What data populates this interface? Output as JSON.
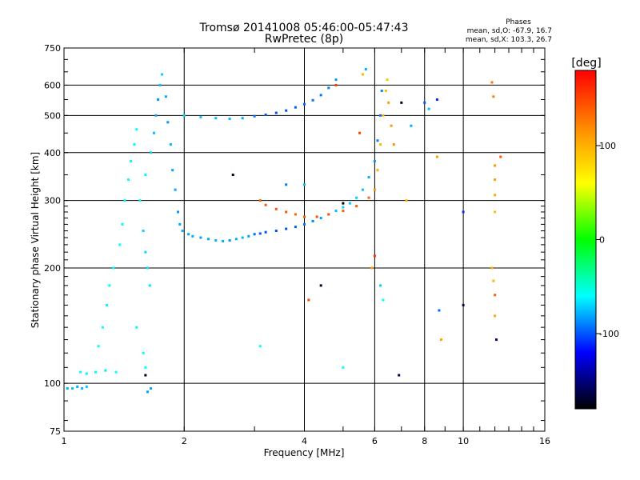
{
  "chart_data": {
    "type": "scatter",
    "title": "Tromsø 20141008 05:46:00-05:47:43",
    "subtitle": "RwPretec (8p)",
    "xlabel": "Frequency [MHz]",
    "ylabel": "Stationary phase Virtual Height [km]",
    "x_scale": "log",
    "y_scale": "log",
    "xlim": [
      1,
      16
    ],
    "ylim": [
      75,
      750
    ],
    "x_ticks": [
      1,
      2,
      4,
      6,
      8,
      10,
      16
    ],
    "y_ticks": [
      75,
      100,
      200,
      300,
      400,
      500,
      600,
      750
    ],
    "x_grid": [
      2,
      4,
      6,
      8,
      10
    ],
    "y_grid": [
      100,
      200,
      300,
      400,
      500,
      600
    ],
    "grid": true,
    "stats": {
      "heading": "Phases",
      "line_o": "mean, sd,O: -67.9, 16.7",
      "line_x": "mean, sd,X: 103.3, 26.7"
    },
    "colorbar": {
      "label": "[deg]",
      "range": [
        -180,
        180
      ],
      "ticks": [
        100,
        0,
        -100
      ],
      "colors": [
        "#ff0000",
        "#ff8800",
        "#ffff00",
        "#00ff00",
        "#00ffff",
        "#0000ff",
        "#000000"
      ]
    },
    "series": [
      {
        "points": [
          [
            1.02,
            97,
            -78
          ],
          [
            1.05,
            97,
            -75
          ],
          [
            1.08,
            98,
            -80
          ],
          [
            1.11,
            97,
            -76
          ],
          [
            1.14,
            98,
            -72
          ],
          [
            1.1,
            107,
            -60
          ],
          [
            1.14,
            106,
            -62
          ],
          [
            1.2,
            107,
            -58
          ],
          [
            1.27,
            108,
            -65
          ],
          [
            1.35,
            107,
            -60
          ],
          [
            1.22,
            125,
            -55
          ],
          [
            1.25,
            140,
            -60
          ],
          [
            1.28,
            160,
            -58
          ],
          [
            1.3,
            180,
            -62
          ],
          [
            1.33,
            200,
            -60
          ],
          [
            1.38,
            230,
            -58
          ],
          [
            1.4,
            260,
            -62
          ],
          [
            1.42,
            300,
            -56
          ],
          [
            1.45,
            340,
            -60
          ],
          [
            1.47,
            380,
            -58
          ],
          [
            1.5,
            420,
            -62
          ],
          [
            1.52,
            460,
            -60
          ],
          [
            1.55,
            300,
            -58
          ],
          [
            1.58,
            250,
            -70
          ],
          [
            1.6,
            220,
            -68
          ],
          [
            1.62,
            200,
            -66
          ],
          [
            1.64,
            180,
            -65
          ],
          [
            1.6,
            350,
            -62
          ],
          [
            1.65,
            400,
            -70
          ],
          [
            1.68,
            450,
            -75
          ],
          [
            1.7,
            500,
            -80
          ],
          [
            1.72,
            550,
            -85
          ],
          [
            1.74,
            600,
            -75
          ],
          [
            1.76,
            640,
            -70
          ],
          [
            1.8,
            560,
            -80
          ],
          [
            1.82,
            480,
            -85
          ],
          [
            1.85,
            420,
            -78
          ],
          [
            1.87,
            360,
            -82
          ],
          [
            1.9,
            320,
            -80
          ],
          [
            1.93,
            280,
            -85
          ],
          [
            1.95,
            260,
            -80
          ],
          [
            1.98,
            250,
            -78
          ],
          [
            1.52,
            140,
            -55
          ],
          [
            1.58,
            120,
            -58
          ],
          [
            1.6,
            110,
            -60
          ],
          [
            1.62,
            95,
            -82
          ],
          [
            1.65,
            97,
            -80
          ],
          [
            1.6,
            105,
            -170
          ],
          [
            2.05,
            245,
            -80
          ],
          [
            2.1,
            242,
            -78
          ],
          [
            2.2,
            240,
            -82
          ],
          [
            2.3,
            238,
            -80
          ],
          [
            2.4,
            236,
            -78
          ],
          [
            2.5,
            235,
            -80
          ],
          [
            2.6,
            236,
            -85
          ],
          [
            2.7,
            238,
            -80
          ],
          [
            2.8,
            240,
            -78
          ],
          [
            2.9,
            242,
            -82
          ],
          [
            3.0,
            245,
            -95
          ],
          [
            3.1,
            246,
            -98
          ],
          [
            3.2,
            248,
            -100
          ],
          [
            3.4,
            250,
            -102
          ],
          [
            3.6,
            253,
            -100
          ],
          [
            3.8,
            256,
            -98
          ],
          [
            4.0,
            260,
            -92
          ],
          [
            4.2,
            265,
            -88
          ],
          [
            4.4,
            270,
            -82
          ],
          [
            4.6,
            276,
            -78
          ],
          [
            4.8,
            282,
            -74
          ],
          [
            5.0,
            288,
            -70
          ],
          [
            5.2,
            295,
            -72
          ],
          [
            5.4,
            305,
            -70
          ],
          [
            5.6,
            320,
            -74
          ],
          [
            5.8,
            345,
            -78
          ],
          [
            6.0,
            380,
            -85
          ],
          [
            6.1,
            430,
            -88
          ],
          [
            6.2,
            500,
            -92
          ],
          [
            6.25,
            580,
            -88
          ],
          [
            2.0,
            500,
            -70
          ],
          [
            2.2,
            495,
            -72
          ],
          [
            2.4,
            492,
            -75
          ],
          [
            2.6,
            490,
            -78
          ],
          [
            2.8,
            492,
            -80
          ],
          [
            3.0,
            498,
            -95
          ],
          [
            3.2,
            502,
            -100
          ],
          [
            3.4,
            508,
            -102
          ],
          [
            3.6,
            515,
            -100
          ],
          [
            3.8,
            525,
            -98
          ],
          [
            4.0,
            535,
            -96
          ],
          [
            4.2,
            548,
            -94
          ],
          [
            4.4,
            565,
            -92
          ],
          [
            4.6,
            590,
            -90
          ],
          [
            4.8,
            620,
            -85
          ],
          [
            3.1,
            300,
            140
          ],
          [
            3.2,
            292,
            142
          ],
          [
            3.4,
            285,
            145
          ],
          [
            3.6,
            280,
            142
          ],
          [
            3.8,
            276,
            138
          ],
          [
            4.0,
            272,
            140
          ],
          [
            4.3,
            272,
            145
          ],
          [
            4.6,
            276,
            142
          ],
          [
            5.0,
            282,
            140
          ],
          [
            5.4,
            290,
            138
          ],
          [
            5.8,
            305,
            135
          ],
          [
            6.0,
            320,
            115
          ],
          [
            6.1,
            360,
            100
          ],
          [
            6.2,
            420,
            95
          ],
          [
            6.3,
            500,
            95
          ],
          [
            6.4,
            580,
            92
          ],
          [
            6.45,
            620,
            90
          ],
          [
            6.5,
            540,
            110
          ],
          [
            6.6,
            470,
            112
          ],
          [
            6.7,
            420,
            115
          ],
          [
            4.8,
            600,
            155
          ],
          [
            5.5,
            450,
            150
          ],
          [
            2.65,
            350,
            -170
          ],
          [
            5.0,
            295,
            -180
          ],
          [
            6.0,
            215,
            160
          ],
          [
            6.2,
            180,
            -70
          ],
          [
            6.3,
            165,
            -60
          ],
          [
            7.0,
            540,
            -170
          ],
          [
            7.2,
            300,
            95
          ],
          [
            7.4,
            470,
            -80
          ],
          [
            8.0,
            540,
            -100
          ],
          [
            8.2,
            520,
            -75
          ],
          [
            8.6,
            550,
            -110
          ],
          [
            8.6,
            390,
            110
          ],
          [
            8.8,
            130,
            108
          ],
          [
            8.7,
            155,
            -95
          ],
          [
            10.0,
            280,
            -110
          ],
          [
            10.0,
            160,
            -160
          ],
          [
            11.8,
            610,
            130
          ],
          [
            11.9,
            560,
            125
          ],
          [
            12.0,
            370,
            115
          ],
          [
            12.0,
            340,
            110
          ],
          [
            12.0,
            310,
            105
          ],
          [
            12.0,
            280,
            95
          ],
          [
            11.8,
            200,
            100
          ],
          [
            11.9,
            185,
            98
          ],
          [
            12.0,
            170,
            140
          ],
          [
            12.0,
            150,
            105
          ],
          [
            12.1,
            130,
            -150
          ],
          [
            12.4,
            390,
            140
          ],
          [
            5.0,
            110,
            -60
          ],
          [
            4.4,
            180,
            -170
          ],
          [
            4.1,
            165,
            150
          ],
          [
            3.1,
            125,
            -60
          ],
          [
            3.6,
            330,
            -90
          ],
          [
            4.0,
            330,
            -75
          ],
          [
            5.6,
            640,
            95
          ],
          [
            5.7,
            660,
            -80
          ],
          [
            6.9,
            105,
            -160
          ],
          [
            5.9,
            200,
            110
          ]
        ]
      }
    ]
  }
}
